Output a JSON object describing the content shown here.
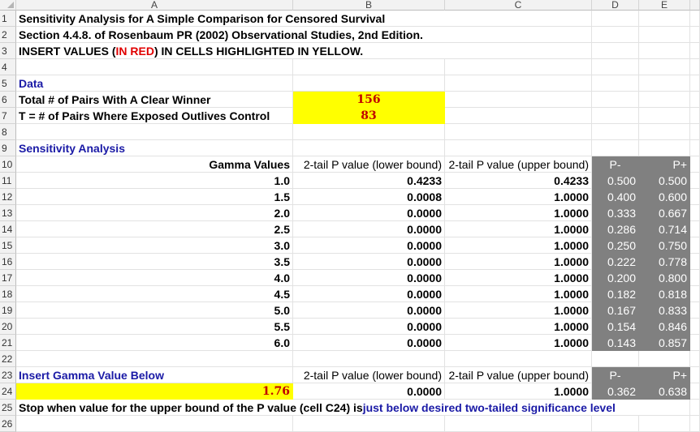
{
  "columns": [
    "A",
    "B",
    "C",
    "D",
    "E"
  ],
  "rows": [
    "1",
    "2",
    "3",
    "4",
    "5",
    "6",
    "7",
    "8",
    "9",
    "10",
    "11",
    "12",
    "13",
    "14",
    "15",
    "16",
    "17",
    "18",
    "19",
    "20",
    "21",
    "22",
    "23",
    "24",
    "25",
    "26"
  ],
  "title": {
    "line1": "Sensitivity Analysis for A Simple Comparison for Censored Survival",
    "line2": "Section 4.4.8. of Rosenbaum PR (2002) Observational Studies, 2nd Edition.",
    "line3_pre": "INSERT VALUES (",
    "line3_red": "IN RED",
    "line3_post": ") IN CELLS HIGHLIGHTED IN YELLOW."
  },
  "data_section": {
    "heading": "Data",
    "pairs_label": "Total # of Pairs With A Clear Winner",
    "pairs_value": "156",
    "t_label": "T = # of Pairs Where Exposed Outlives Control",
    "t_value": "83"
  },
  "sensitivity": {
    "heading": "Sensitivity Analysis",
    "col_gamma": "Gamma Values",
    "col_lower": "2-tail P value (lower bound)",
    "col_upper": "2-tail P value (upper bound)",
    "col_pminus": "P-",
    "col_pplus": "P+",
    "rows": [
      {
        "gamma": "1.0",
        "lower": "0.4233",
        "upper": "0.4233",
        "pminus": "0.500",
        "pplus": "0.500"
      },
      {
        "gamma": "1.5",
        "lower": "0.0008",
        "upper": "1.0000",
        "pminus": "0.400",
        "pplus": "0.600"
      },
      {
        "gamma": "2.0",
        "lower": "0.0000",
        "upper": "1.0000",
        "pminus": "0.333",
        "pplus": "0.667"
      },
      {
        "gamma": "2.5",
        "lower": "0.0000",
        "upper": "1.0000",
        "pminus": "0.286",
        "pplus": "0.714"
      },
      {
        "gamma": "3.0",
        "lower": "0.0000",
        "upper": "1.0000",
        "pminus": "0.250",
        "pplus": "0.750"
      },
      {
        "gamma": "3.5",
        "lower": "0.0000",
        "upper": "1.0000",
        "pminus": "0.222",
        "pplus": "0.778"
      },
      {
        "gamma": "4.0",
        "lower": "0.0000",
        "upper": "1.0000",
        "pminus": "0.200",
        "pplus": "0.800"
      },
      {
        "gamma": "4.5",
        "lower": "0.0000",
        "upper": "1.0000",
        "pminus": "0.182",
        "pplus": "0.818"
      },
      {
        "gamma": "5.0",
        "lower": "0.0000",
        "upper": "1.0000",
        "pminus": "0.167",
        "pplus": "0.833"
      },
      {
        "gamma": "5.5",
        "lower": "0.0000",
        "upper": "1.0000",
        "pminus": "0.154",
        "pplus": "0.846"
      },
      {
        "gamma": "6.0",
        "lower": "0.0000",
        "upper": "1.0000",
        "pminus": "0.143",
        "pplus": "0.857"
      }
    ]
  },
  "gamma_input": {
    "heading": "Insert Gamma Value Below",
    "col_lower": "2-tail P value (lower bound)",
    "col_upper": "2-tail P value (upper bound)",
    "col_pminus": "P-",
    "col_pplus": "P+",
    "gamma": "1.76",
    "lower": "0.0000",
    "upper": "1.0000",
    "pminus": "0.362",
    "pplus": "0.638"
  },
  "footer": {
    "pre": "Stop when value for the upper bound of the P value (cell C24) is ",
    "blue": "just below desired two-tailed significance level"
  },
  "colors": {
    "yellow": "#ffff00",
    "gray": "#808080",
    "blue": "#1a1aa6",
    "red": "#e00000"
  }
}
